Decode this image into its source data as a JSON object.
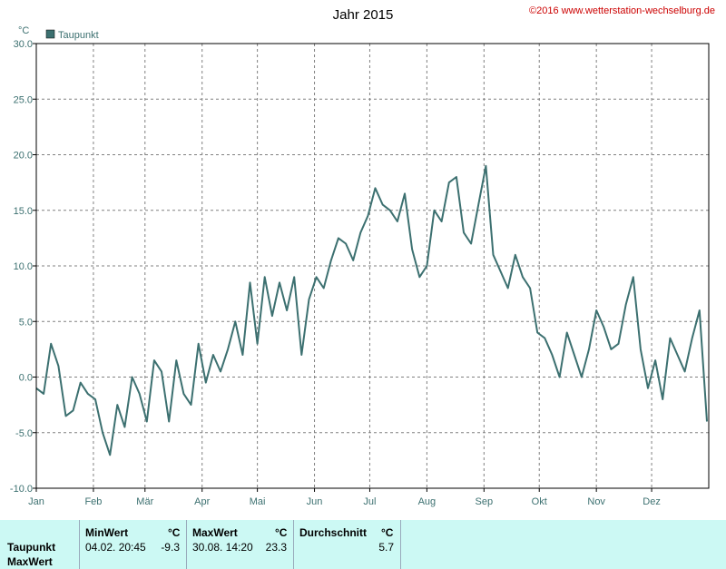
{
  "header": {
    "title": "Jahr 2015",
    "copyright": "©2016 www.wetterstation-wechselburg.de"
  },
  "chart_data": {
    "type": "line",
    "title": "Jahr 2015",
    "ylabel": "°C",
    "ylim": [
      -10,
      30
    ],
    "yticks": [
      "30.0",
      "25.0",
      "20.0",
      "15.0",
      "10.0",
      "5.0",
      "0.0",
      "-5.0",
      "-10.0"
    ],
    "ytick_values": [
      30,
      25,
      20,
      15,
      10,
      5,
      0,
      -5,
      -10
    ],
    "xlim": [
      0,
      365
    ],
    "xticks": [
      "Jan",
      "Feb",
      "Mär",
      "Apr",
      "Mai",
      "Jun",
      "Jul",
      "Aug",
      "Sep",
      "Okt",
      "Nov",
      "Dez"
    ],
    "xtick_days": [
      0,
      31,
      59,
      90,
      120,
      151,
      181,
      212,
      243,
      273,
      304,
      334
    ],
    "grid": true,
    "legend": {
      "position": "top-left",
      "entries": [
        "Taupunkt"
      ]
    },
    "series_color": "#3c7070",
    "series": [
      {
        "name": "Taupunkt",
        "x": [
          0,
          4,
          8,
          12,
          16,
          20,
          24,
          28,
          32,
          36,
          40,
          44,
          48,
          52,
          56,
          60,
          64,
          68,
          72,
          76,
          80,
          84,
          88,
          92,
          96,
          100,
          104,
          108,
          112,
          116,
          120,
          124,
          128,
          132,
          136,
          140,
          144,
          148,
          152,
          156,
          160,
          164,
          168,
          172,
          176,
          180,
          184,
          188,
          192,
          196,
          200,
          204,
          208,
          212,
          216,
          220,
          224,
          228,
          232,
          236,
          240,
          244,
          248,
          252,
          256,
          260,
          264,
          268,
          272,
          276,
          280,
          284,
          288,
          292,
          296,
          300,
          304,
          308,
          312,
          316,
          320,
          324,
          328,
          332,
          336,
          340,
          344,
          348,
          352,
          356,
          360,
          364
        ],
        "y": [
          -1.0,
          -1.5,
          3.0,
          1.0,
          -3.5,
          -3.0,
          -0.5,
          -1.5,
          -2.0,
          -5.0,
          -7.0,
          -2.5,
          -4.5,
          0.0,
          -1.5,
          -4.0,
          1.5,
          0.5,
          -4.0,
          1.5,
          -1.5,
          -2.5,
          3.0,
          -0.5,
          2.0,
          0.5,
          2.5,
          5.0,
          2.0,
          8.5,
          3.0,
          9.0,
          5.5,
          8.5,
          6.0,
          9.0,
          2.0,
          7.0,
          9.0,
          8.0,
          10.5,
          12.5,
          12.0,
          10.5,
          13.0,
          14.5,
          17.0,
          15.5,
          15.0,
          14.0,
          16.5,
          11.5,
          9.0,
          10.0,
          15.0,
          14.0,
          17.5,
          18.0,
          13.0,
          12.0,
          15.5,
          19.0,
          11.0,
          9.5,
          8.0,
          11.0,
          9.0,
          8.0,
          4.0,
          3.5,
          2.0,
          0.0,
          4.0,
          2.0,
          0.0,
          2.5,
          6.0,
          4.5,
          2.5,
          3.0,
          6.5,
          9.0,
          2.5,
          -1.0,
          1.5,
          -2.0,
          3.5,
          2.0,
          0.5,
          3.5,
          6.0,
          -4.0
        ]
      }
    ]
  },
  "stats": {
    "headers": {
      "min": "MinWert",
      "max": "MaxWert",
      "avg": "Durchschnitt",
      "unit": "°C"
    },
    "rows": [
      {
        "label": "Taupunkt",
        "min_time": "04.02.  20:45",
        "min_value": "-9.3",
        "max_time": "30.08.  14:20",
        "max_value": "23.3",
        "avg": "5.7"
      },
      {
        "label": "MaxWert"
      }
    ]
  }
}
